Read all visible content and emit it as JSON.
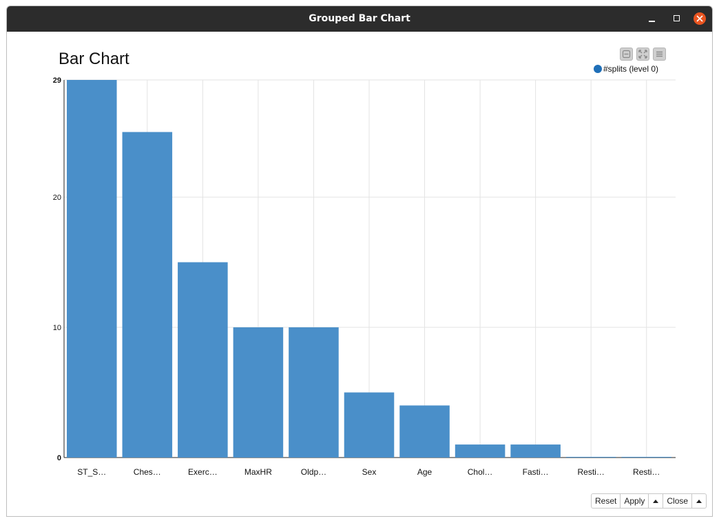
{
  "window": {
    "title": "Grouped Bar Chart"
  },
  "colors": {
    "bar": "#4a8fc9",
    "legend": "#1f6fb8",
    "grid": "#e3e3e3",
    "close": "#e95420"
  },
  "chart_data": {
    "type": "bar",
    "title": "Bar Chart",
    "categories": [
      "ST_S…",
      "Ches…",
      "Exerc…",
      "MaxHR",
      "Oldp…",
      "Sex",
      "Age",
      "Chol…",
      "Fasti…",
      "Resti…",
      "Resti…"
    ],
    "series": [
      {
        "name": "#splits (level 0)",
        "values": [
          29,
          25,
          15,
          10,
          10,
          5,
          4,
          1,
          1,
          0.05,
          0.05
        ]
      }
    ],
    "ylim": [
      0,
      29
    ],
    "yticks": [
      "0",
      "10",
      "20",
      "29"
    ],
    "grid": true,
    "legend_position": "top-right"
  },
  "footer": {
    "reset": "Reset",
    "apply": "Apply",
    "close": "Close"
  }
}
